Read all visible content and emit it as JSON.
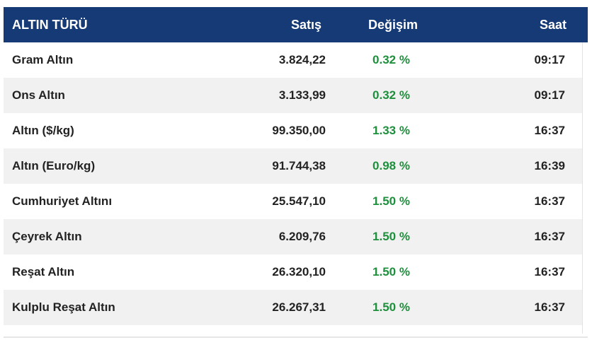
{
  "table": {
    "headers": {
      "name": "ALTIN TÜRÜ",
      "sale": "Satış",
      "change": "Değişim",
      "time": "Saat"
    },
    "rows": [
      {
        "name": "Gram Altın",
        "sale": "3.824,22",
        "change": "0.32 %",
        "time": "09:17"
      },
      {
        "name": "Ons Altın",
        "sale": "3.133,99",
        "change": "0.32 %",
        "time": "09:17"
      },
      {
        "name": "Altın ($/kg)",
        "sale": "99.350,00",
        "change": "1.33 %",
        "time": "16:37"
      },
      {
        "name": "Altın (Euro/kg)",
        "sale": "91.744,38",
        "change": "0.98 %",
        "time": "16:39"
      },
      {
        "name": "Cumhuriyet Altını",
        "sale": "25.547,10",
        "change": "1.50 %",
        "time": "16:37"
      },
      {
        "name": "Çeyrek Altın",
        "sale": "6.209,76",
        "change": "1.50 %",
        "time": "16:37"
      },
      {
        "name": "Reşat Altın",
        "sale": "26.320,10",
        "change": "1.50 %",
        "time": "16:37"
      },
      {
        "name": "Kulplu Reşat Altın",
        "sale": "26.267,31",
        "change": "1.50 %",
        "time": "16:37"
      }
    ]
  },
  "colors": {
    "header_bg": "#163a75",
    "positive_change": "#1e8f3c",
    "row_alt_bg": "#f1f1f1"
  }
}
